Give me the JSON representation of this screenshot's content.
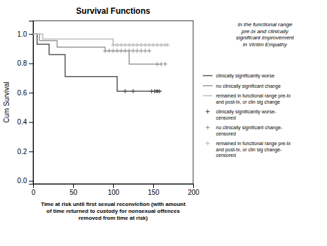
{
  "chart_data": {
    "type": "line",
    "title": "Survival Functions",
    "xlabel": "Time at risk until first sexual reconviction (with amount\nof time returned to custody for nonsexual offences\nremoved from time at risk)",
    "ylabel": "Cum Survival",
    "annotation": "In the functional range\npre-tx and clinically\nsignificant improvement\nin Victim Empathy",
    "xlim": [
      0,
      200
    ],
    "ylim": [
      -0.02,
      1.09
    ],
    "xticks": [
      0,
      50,
      100,
      150,
      200
    ],
    "yticks": [
      {
        "value": 0.0,
        "label": "0.0"
      },
      {
        "value": 0.2,
        "label": "0.2"
      },
      {
        "value": 0.4,
        "label": "0.4"
      },
      {
        "value": 0.6,
        "label": "0.6"
      },
      {
        "value": 0.8,
        "label": "0.8"
      },
      {
        "value": 1.0,
        "label": "1.0"
      }
    ],
    "grid": false,
    "legend": "right",
    "series": [
      {
        "name": "clinically significantly worse",
        "type": "line",
        "color": "#555555",
        "x": [
          0,
          5,
          5,
          20,
          20,
          40,
          40,
          105,
          105,
          110,
          110,
          160
        ],
        "values": [
          1.0,
          1.0,
          0.93,
          0.93,
          0.86,
          0.86,
          0.71,
          0.71,
          0.61,
          0.61,
          0.61,
          0.61
        ]
      },
      {
        "name": "no clinically significant change",
        "type": "line",
        "color": "#999999",
        "x": [
          0,
          8,
          8,
          30,
          30,
          90,
          90,
          120,
          120,
          155,
          155,
          160
        ],
        "values": [
          1.0,
          1.0,
          0.955,
          0.955,
          0.91,
          0.91,
          0.885,
          0.885,
          0.795,
          0.795,
          0.795,
          0.795
        ]
      },
      {
        "name": "remained in functional range pre-tx\nand post-tx, or clin sig change",
        "type": "line",
        "color": "#bbbbbb",
        "x": [
          0,
          12,
          12,
          100,
          100,
          168
        ],
        "values": [
          1.0,
          1.0,
          0.965,
          0.965,
          0.925,
          0.925
        ]
      },
      {
        "name": "clinically significantly worse-\ncensored",
        "type": "scatter",
        "marker": "plus",
        "color": "#555555",
        "x": [
          115,
          125,
          148,
          152,
          158
        ],
        "values": [
          0.61,
          0.61,
          0.61,
          0.61,
          0.61
        ]
      },
      {
        "name": "no clinically significant change-\ncensored",
        "type": "scatter",
        "marker": "plus",
        "color": "#999999",
        "x": [
          90,
          95,
          100,
          105,
          110,
          115,
          120,
          125,
          130,
          135,
          140,
          145,
          155,
          160,
          165
        ],
        "values": [
          0.885,
          0.885,
          0.885,
          0.885,
          0.885,
          0.885,
          0.885,
          0.885,
          0.885,
          0.885,
          0.885,
          0.885,
          0.795,
          0.795,
          0.795
        ]
      },
      {
        "name": "remained in functional range pre-tx\nand post-tx, or clin sig change-\ncensored",
        "type": "scatter",
        "marker": "plus",
        "color": "#bbbbbb",
        "x": [
          100,
          105,
          110,
          115,
          120,
          125,
          130,
          135,
          140,
          145,
          150,
          155,
          160,
          165,
          168
        ],
        "values": [
          0.925,
          0.925,
          0.925,
          0.925,
          0.925,
          0.925,
          0.925,
          0.925,
          0.925,
          0.925,
          0.925,
          0.925,
          0.925,
          0.925,
          0.925
        ]
      },
      {
        "type": "scatter",
        "marker": "circle",
        "color": "#555555",
        "x": [
          155
        ],
        "values": [
          0.61
        ]
      }
    ]
  }
}
